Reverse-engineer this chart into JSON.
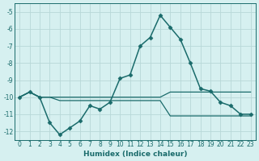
{
  "xlabel": "Humidex (Indice chaleur)",
  "background_color": "#d6f0f0",
  "grid_color": "#b8d8d8",
  "line_color": "#1a6b6b",
  "xlim": [
    -0.5,
    23.5
  ],
  "ylim": [
    -12.5,
    -4.5
  ],
  "yticks": [
    -5,
    -6,
    -7,
    -8,
    -9,
    -10,
    -11,
    -12
  ],
  "xticks": [
    0,
    1,
    2,
    3,
    4,
    5,
    6,
    7,
    8,
    9,
    10,
    11,
    12,
    13,
    14,
    15,
    16,
    17,
    18,
    19,
    20,
    21,
    22,
    23
  ],
  "series": [
    {
      "x": [
        0,
        1,
        2,
        3,
        4,
        5,
        6,
        7,
        8,
        9,
        10,
        11,
        12,
        13,
        14,
        15,
        16,
        17,
        18,
        19,
        20,
        21,
        22,
        23
      ],
      "y": [
        -10.0,
        -9.7,
        -10.0,
        -10.0,
        -10.0,
        -10.0,
        -10.0,
        -10.0,
        -10.0,
        -10.0,
        -10.0,
        -10.0,
        -10.0,
        -10.0,
        -10.0,
        -9.7,
        -9.7,
        -9.7,
        -9.7,
        -9.7,
        -9.7,
        -9.7,
        -9.7,
        -9.7
      ],
      "marker": false,
      "linewidth": 0.9
    },
    {
      "x": [
        0,
        1,
        2,
        3,
        4,
        5,
        6,
        7,
        8,
        9,
        10,
        11,
        12,
        13,
        14,
        15,
        16,
        17,
        18,
        19,
        20,
        21,
        22,
        23
      ],
      "y": [
        -10.0,
        -9.7,
        -10.0,
        -10.0,
        -10.2,
        -10.2,
        -10.2,
        -10.2,
        -10.2,
        -10.2,
        -10.2,
        -10.2,
        -10.2,
        -10.2,
        -10.2,
        -11.1,
        -11.1,
        -11.1,
        -11.1,
        -11.1,
        -11.1,
        -11.1,
        -11.1,
        -11.1
      ],
      "marker": false,
      "linewidth": 0.9
    },
    {
      "x": [
        0,
        1,
        2,
        3,
        4,
        5,
        6,
        7,
        8,
        9,
        10,
        11,
        12,
        13,
        14,
        15,
        16,
        17,
        18,
        19,
        20,
        21,
        22,
        23
      ],
      "y": [
        -10.0,
        -9.7,
        -10.0,
        -11.5,
        -12.2,
        -11.8,
        -11.4,
        -10.5,
        -10.7,
        -10.3,
        -8.9,
        -8.7,
        -7.0,
        -6.5,
        -5.2,
        -5.9,
        -6.6,
        -8.0,
        -9.5,
        -9.65,
        -10.3,
        -10.5,
        -11.0,
        -11.0
      ],
      "marker": true,
      "linewidth": 1.1
    }
  ]
}
